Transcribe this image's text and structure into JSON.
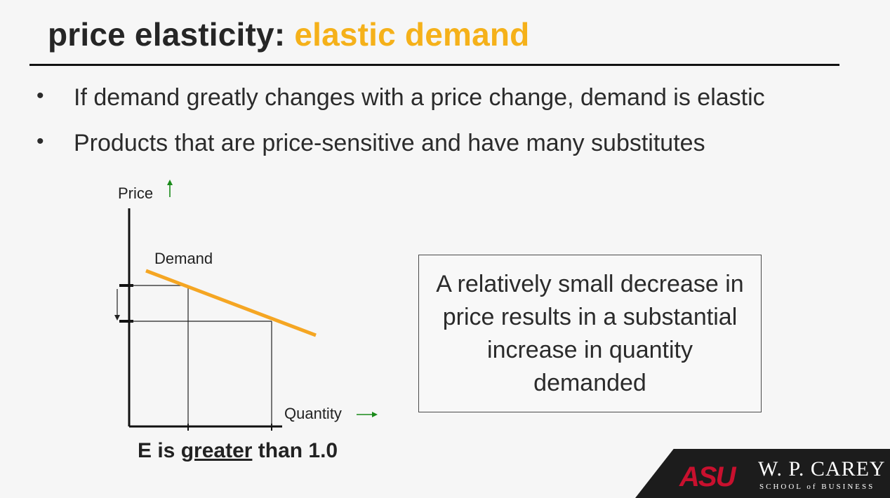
{
  "slide": {
    "title_main": "price elasticity: ",
    "title_accent": "elastic demand",
    "bullets": [
      "If demand greatly changes with a price change, demand is elastic",
      "Products that are price-sensitive and have many substitutes"
    ],
    "bullet_glyph": "•"
  },
  "diagram": {
    "y_axis_label": "Price",
    "x_axis_label": "Quantity",
    "curve_label": "Demand",
    "axis_arrow_color": "#1a8a1a",
    "curve_color": "#f5a623"
  },
  "callout": {
    "text": "A relatively small decrease in price results in a substantial increase in quantity demanded"
  },
  "caption": {
    "prefix": "E is ",
    "emphasis": "greater",
    "suffix": " than 1.0"
  },
  "branding": {
    "logo_text": "ASU",
    "school_name": "W. P. CAREY",
    "school_sub": "SCHOOL of BUSINESS"
  }
}
